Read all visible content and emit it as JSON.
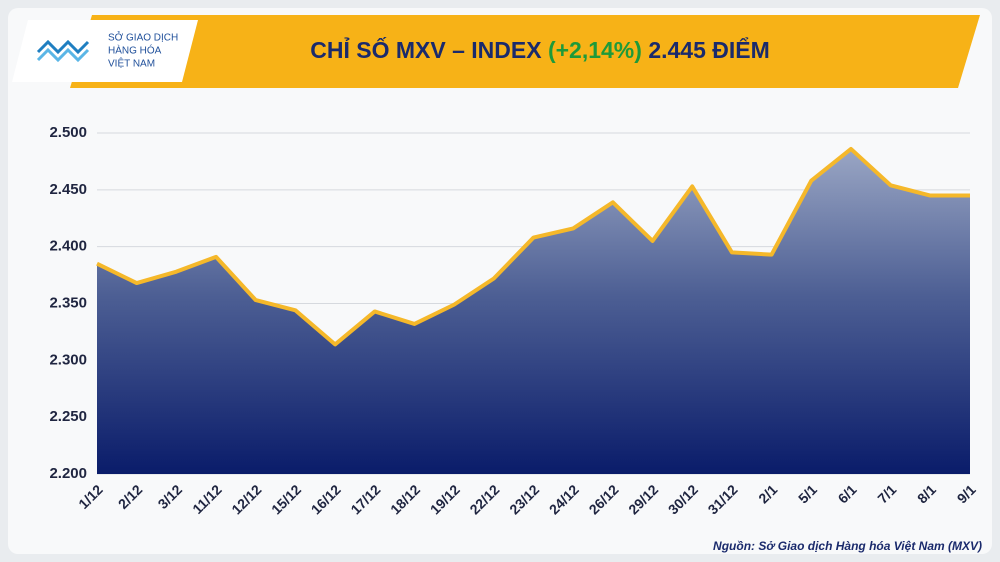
{
  "logo": {
    "lines": [
      "SỞ GIAO DỊCH",
      "HÀNG HÓA",
      "VIỆT NAM"
    ]
  },
  "chart_data": {
    "type": "area",
    "title": "CHỈ SỐ MXV – INDEX",
    "change_label": "(+2,14%)",
    "index_label": "2.445 ĐIỂM",
    "source": "Nguồn: Sở Giao dịch Hàng hóa Việt Nam (MXV)",
    "categories": [
      "1/12",
      "2/12",
      "3/12",
      "11/12",
      "12/12",
      "15/12",
      "16/12",
      "17/12",
      "18/12",
      "19/12",
      "22/12",
      "23/12",
      "24/12",
      "26/12",
      "29/12",
      "30/12",
      "31/12",
      "2/1",
      "5/1",
      "6/1",
      "7/1",
      "8/1",
      "9/1"
    ],
    "values": [
      2385,
      2368,
      2378,
      2391,
      2353,
      2344,
      2314,
      2343,
      2332,
      2349,
      2372,
      2408,
      2416,
      2439,
      2405,
      2453,
      2395,
      2393,
      2458,
      2486,
      2454,
      2445,
      2445
    ],
    "color": "#f5b82a",
    "ylim": [
      2200,
      2500
    ],
    "yticks": [
      {
        "value": 2200,
        "label": "2.200"
      },
      {
        "value": 2250,
        "label": "2.250"
      },
      {
        "value": 2300,
        "label": "2.300"
      },
      {
        "value": 2350,
        "label": "2.350"
      },
      {
        "value": 2400,
        "label": "2.400"
      },
      {
        "value": 2450,
        "label": "2.450"
      },
      {
        "value": 2500,
        "label": "2.500"
      }
    ],
    "grid": true
  }
}
